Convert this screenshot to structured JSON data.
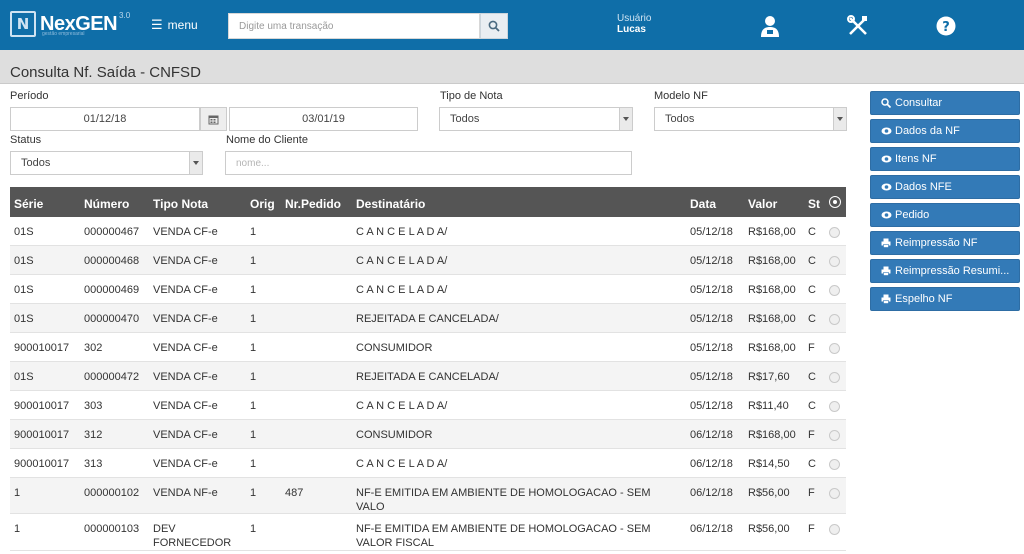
{
  "app": {
    "logo_mark": "N",
    "logo_name": "NexGEN",
    "logo_version": "3.0",
    "logo_tagline": "gestão empresarial",
    "menu_label": "menu",
    "search_placeholder": "Digite uma transação",
    "user_label": "Usuário",
    "user_name": "Lucas",
    "icons": [
      "search-icon",
      "user-icon",
      "tools-icon",
      "help-icon"
    ],
    "colors": {
      "topbar": "#0f6ea8",
      "button": "#337ab7",
      "table_header": "#555555"
    }
  },
  "page": {
    "title": "Consulta Nf. Saída - CNFSD"
  },
  "filters": {
    "periodo_label": "Período",
    "periodo_start": "01/12/18",
    "periodo_end": "03/01/19",
    "tipo_nota_label": "Tipo de Nota",
    "tipo_nota_value": "Todos",
    "modelo_nf_label": "Modelo NF",
    "modelo_nf_value": "Todos",
    "status_label": "Status",
    "status_value": "Todos",
    "cliente_label": "Nome do Cliente",
    "cliente_placeholder": "nome..."
  },
  "actions": [
    {
      "label": "Consultar",
      "icon": "search-icon"
    },
    {
      "label": "Dados da NF",
      "icon": "eye-icon"
    },
    {
      "label": "Itens NF",
      "icon": "eye-icon"
    },
    {
      "label": "Dados NFE",
      "icon": "eye-icon"
    },
    {
      "label": "Pedido",
      "icon": "eye-icon"
    },
    {
      "label": "Reimpressão NF",
      "icon": "print-icon"
    },
    {
      "label": "Reimpressão Resumi...",
      "icon": "print-icon"
    },
    {
      "label": "Espelho NF",
      "icon": "print-icon"
    }
  ],
  "table": {
    "columns": [
      "Série",
      "Número",
      "Tipo Nota",
      "Orig",
      "Nr.Pedido",
      "Destinatário",
      "Data",
      "Valor",
      "St"
    ],
    "rows": [
      {
        "serie": "01S",
        "numero": "000000467",
        "tipo": "VENDA CF-e",
        "orig": "1",
        "pedido": "",
        "dest": "C A N C E L A D A/",
        "data": "05/12/18",
        "valor": "R$168,00",
        "st": "C"
      },
      {
        "serie": "01S",
        "numero": "000000468",
        "tipo": "VENDA CF-e",
        "orig": "1",
        "pedido": "",
        "dest": "C A N C E L A D A/",
        "data": "05/12/18",
        "valor": "R$168,00",
        "st": "C"
      },
      {
        "serie": "01S",
        "numero": "000000469",
        "tipo": "VENDA CF-e",
        "orig": "1",
        "pedido": "",
        "dest": "C A N C E L A D A/",
        "data": "05/12/18",
        "valor": "R$168,00",
        "st": "C"
      },
      {
        "serie": "01S",
        "numero": "000000470",
        "tipo": "VENDA CF-e",
        "orig": "1",
        "pedido": "",
        "dest": "REJEITADA E CANCELADA/",
        "data": "05/12/18",
        "valor": "R$168,00",
        "st": "C"
      },
      {
        "serie": "900010017",
        "numero": "302",
        "tipo": "VENDA CF-e",
        "orig": "1",
        "pedido": "",
        "dest": "CONSUMIDOR",
        "data": "05/12/18",
        "valor": "R$168,00",
        "st": "F"
      },
      {
        "serie": "01S",
        "numero": "000000472",
        "tipo": "VENDA CF-e",
        "orig": "1",
        "pedido": "",
        "dest": "REJEITADA E CANCELADA/",
        "data": "05/12/18",
        "valor": "R$17,60",
        "st": "C"
      },
      {
        "serie": "900010017",
        "numero": "303",
        "tipo": "VENDA CF-e",
        "orig": "1",
        "pedido": "",
        "dest": "C A N C E L A D A/",
        "data": "05/12/18",
        "valor": "R$11,40",
        "st": "C"
      },
      {
        "serie": "900010017",
        "numero": "312",
        "tipo": "VENDA CF-e",
        "orig": "1",
        "pedido": "",
        "dest": "CONSUMIDOR",
        "data": "06/12/18",
        "valor": "R$168,00",
        "st": "F"
      },
      {
        "serie": "900010017",
        "numero": "313",
        "tipo": "VENDA CF-e",
        "orig": "1",
        "pedido": "",
        "dest": "C A N C E L A D A/",
        "data": "06/12/18",
        "valor": "R$14,50",
        "st": "C"
      },
      {
        "serie": "1",
        "numero": "000000102",
        "tipo": "VENDA NF-e",
        "orig": "1",
        "pedido": "487",
        "dest": "NF-E EMITIDA EM AMBIENTE DE HOMOLOGACAO - SEM VALO",
        "data": "06/12/18",
        "valor": "R$56,00",
        "st": "F"
      },
      {
        "serie": "1",
        "numero": "000000103",
        "tipo": "DEV FORNECEDOR",
        "orig": "1",
        "pedido": "",
        "dest": "NF-E EMITIDA EM AMBIENTE DE HOMOLOGACAO - SEM VALOR FISCAL",
        "data": "06/12/18",
        "valor": "R$56,00",
        "st": "F"
      }
    ]
  }
}
